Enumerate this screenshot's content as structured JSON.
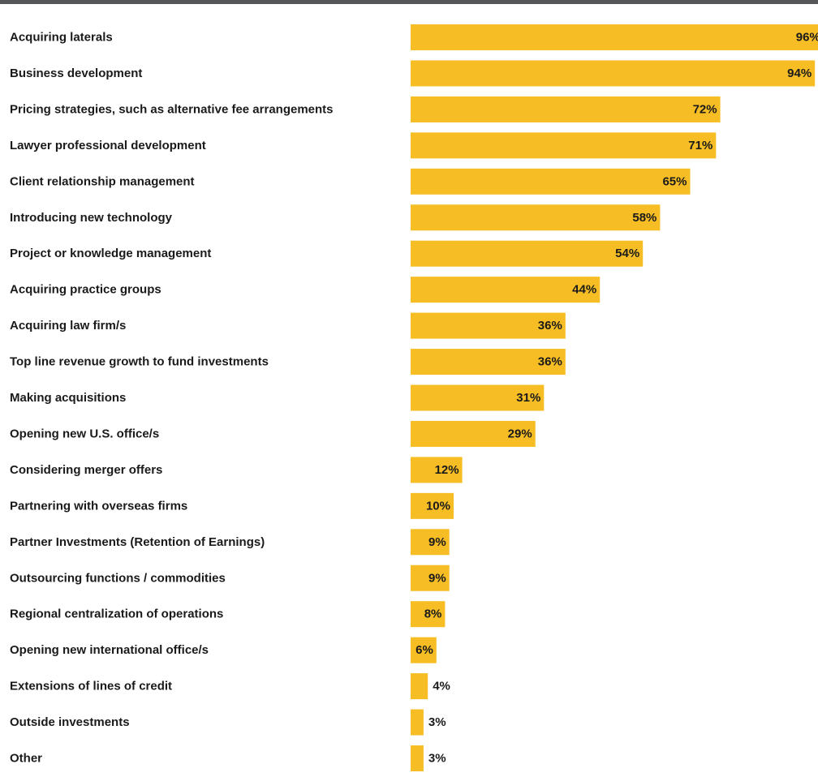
{
  "chart_data": {
    "type": "bar",
    "orientation": "horizontal",
    "title": "",
    "xlabel": "",
    "ylabel": "",
    "xlim": [
      0,
      100
    ],
    "grid": false,
    "legend": "none",
    "bar_color": "#f6bd24",
    "rule_color": "#555759",
    "categories": [
      "Acquiring laterals",
      "Business development",
      "Pricing strategies, such as alternative fee arrangements",
      "Lawyer professional development",
      "Client relationship management",
      "Introducing new technology",
      "Project or knowledge management",
      "Acquiring practice groups",
      "Acquiring law firm/s",
      "Top line revenue growth to fund investments",
      "Making acquisitions",
      "Opening new U.S. office/s",
      "Considering merger offers",
      "Partnering with overseas firms",
      "Partner Investments (Retention of Earnings)",
      "Outsourcing functions / commodities",
      "Regional centralization of operations",
      "Opening new international office/s",
      "Extensions of lines of credit",
      "Outside investments",
      "Other"
    ],
    "values": [
      96,
      94,
      72,
      71,
      65,
      58,
      54,
      44,
      36,
      36,
      31,
      29,
      12,
      10,
      9,
      9,
      8,
      6,
      4,
      3,
      3
    ],
    "value_labels": [
      "96%",
      "94%",
      "72%",
      "71%",
      "65%",
      "58%",
      "54%",
      "44%",
      "36%",
      "36%",
      "31%",
      "29%",
      "12%",
      "10%",
      "9%",
      "9%",
      "8%",
      "6%",
      "4%",
      "3%",
      "3%"
    ]
  }
}
